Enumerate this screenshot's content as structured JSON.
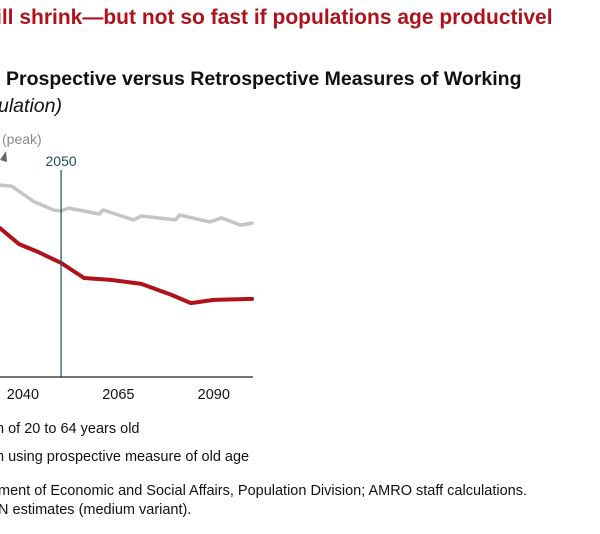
{
  "headline": "ill shrink—but not so fast if populations age productivel",
  "chart_data": {
    "type": "line",
    "title": "Prospective versus Retrospective Measures of Working",
    "subtitle": "ulation)",
    "xlabel": "",
    "ylabel": "",
    "x_ticks": [
      "2040",
      "2065",
      "2090"
    ],
    "xlim": [
      2034,
      2100
    ],
    "ylim": [
      0,
      100
    ],
    "y_units_note": "relative level (y-axis not visible in crop)",
    "grid": false,
    "annotations": [
      {
        "type": "vertical-line",
        "x": 2050,
        "label": "2050",
        "color": "#1f4e5f"
      },
      {
        "type": "arrow-label",
        "label": "(peak)",
        "color": "#8a8a8a"
      }
    ],
    "series": [
      {
        "name": "Prospective measure (grey)",
        "color": "#c4c4c4",
        "x": [
          2034,
          2037,
          2043,
          2048,
          2050,
          2052,
          2060,
          2061,
          2069,
          2071,
          2080,
          2081,
          2089,
          2092,
          2097,
          2100
        ],
        "values": [
          77.7,
          77.3,
          70.9,
          67.6,
          67.2,
          68.4,
          66.0,
          67.6,
          63.6,
          65.2,
          63.6,
          65.6,
          62.8,
          64.4,
          61.5,
          62.3
        ]
      },
      {
        "name": "Retrospective measure (red)",
        "color": "#b0121b",
        "x": [
          2034,
          2039,
          2044,
          2050,
          2056,
          2063,
          2071,
          2079,
          2084,
          2090,
          2100
        ],
        "values": [
          60.3,
          53.8,
          50.6,
          46.2,
          40.1,
          39.3,
          37.7,
          33.2,
          29.9,
          31.2,
          31.6
        ]
      }
    ]
  },
  "legend": {
    "items": [
      {
        "label": "n of 20 to 64 years old"
      },
      {
        "label": "n using prospective measure of old age"
      }
    ]
  },
  "source": {
    "line1": "ment of Economic and Social Affairs, Population Division; AMRO staff calculations.",
    "line2": "N estimates (medium variant)."
  }
}
